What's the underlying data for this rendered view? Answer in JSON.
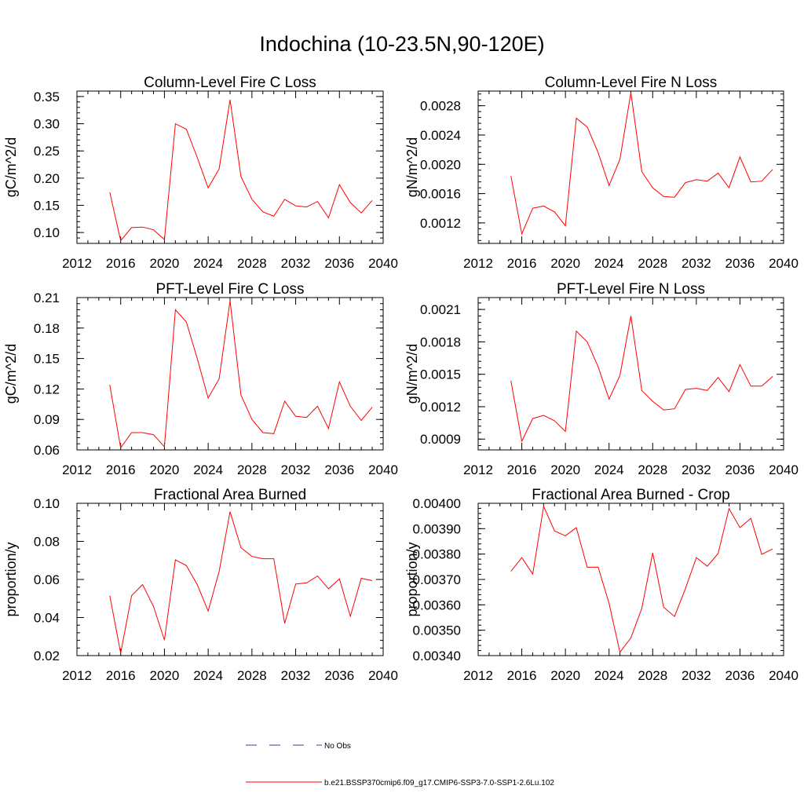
{
  "figure": {
    "title": "Indochina (10-23.5N,90-120E)"
  },
  "legend": [
    {
      "label": "No Obs",
      "color": "#3b3b9b",
      "dash": "dashed"
    },
    {
      "label": "b.e21.BSSP370cmip6.f09_g17.CMIP6-SSP3-7.0-SSP1-2.6Lu.102",
      "color": "#ff0000",
      "dash": "solid"
    }
  ],
  "chart_data": [
    {
      "type": "line",
      "title": "Column-Level Fire C Loss",
      "xlabel": "",
      "ylabel": "gC/m^2/d",
      "xlim": [
        2012,
        2040
      ],
      "ylim": [
        0.08,
        0.36
      ],
      "x_ticks": [
        "2012",
        "2016",
        "2020",
        "2024",
        "2028",
        "2032",
        "2036",
        "2040"
      ],
      "y_ticks": [
        "0.10",
        "0.15",
        "0.20",
        "0.25",
        "0.30",
        "0.35"
      ],
      "y_tick_values": [
        0.1,
        0.15,
        0.2,
        0.25,
        0.3,
        0.35
      ],
      "x": [
        2015,
        2016,
        2017,
        2018,
        2019,
        2020,
        2021,
        2022,
        2023,
        2024,
        2025,
        2026,
        2027,
        2028,
        2029,
        2030,
        2031,
        2032,
        2033,
        2034,
        2035,
        2036,
        2037,
        2038,
        2039
      ],
      "series": [
        {
          "color": "#ff0000",
          "values": [
            0.174,
            0.085,
            0.109,
            0.11,
            0.105,
            0.087,
            0.3,
            0.29,
            0.238,
            0.182,
            0.217,
            0.344,
            0.203,
            0.161,
            0.138,
            0.13,
            0.161,
            0.149,
            0.147,
            0.157,
            0.127,
            0.188,
            0.155,
            0.136,
            0.159
          ]
        }
      ]
    },
    {
      "type": "line",
      "title": "Column-Level Fire N Loss",
      "xlabel": "",
      "ylabel": "gN/m^2/d",
      "xlim": [
        2012,
        2040
      ],
      "ylim": [
        0.00092,
        0.003
      ],
      "x_ticks": [
        "2012",
        "2016",
        "2020",
        "2024",
        "2028",
        "2032",
        "2036",
        "2040"
      ],
      "y_ticks": [
        "0.0012",
        "0.0016",
        "0.0020",
        "0.0024",
        "0.0028"
      ],
      "y_tick_values": [
        0.0012,
        0.0016,
        0.002,
        0.0024,
        0.0028
      ],
      "x": [
        2015,
        2016,
        2017,
        2018,
        2019,
        2020,
        2021,
        2022,
        2023,
        2024,
        2025,
        2026,
        2027,
        2028,
        2029,
        2030,
        2031,
        2032,
        2033,
        2034,
        2035,
        2036,
        2037,
        2038,
        2039
      ],
      "series": [
        {
          "color": "#ff0000",
          "values": [
            0.00184,
            0.00105,
            0.0014,
            0.00143,
            0.00135,
            0.00116,
            0.00263,
            0.00251,
            0.00216,
            0.00171,
            0.00207,
            0.00298,
            0.0019,
            0.00168,
            0.00156,
            0.00155,
            0.00175,
            0.00179,
            0.00177,
            0.00188,
            0.00168,
            0.0021,
            0.00176,
            0.00177,
            0.00193
          ]
        }
      ]
    },
    {
      "type": "line",
      "title": "PFT-Level Fire C Loss",
      "xlabel": "",
      "ylabel": "gC/m^2/d",
      "xlim": [
        2012,
        2040
      ],
      "ylim": [
        0.06,
        0.21
      ],
      "x_ticks": [
        "2012",
        "2016",
        "2020",
        "2024",
        "2028",
        "2032",
        "2036",
        "2040"
      ],
      "y_ticks": [
        "0.06",
        "0.09",
        "0.12",
        "0.15",
        "0.18",
        "0.21"
      ],
      "y_tick_values": [
        0.06,
        0.09,
        0.12,
        0.15,
        0.18,
        0.21
      ],
      "x": [
        2015,
        2016,
        2017,
        2018,
        2019,
        2020,
        2021,
        2022,
        2023,
        2024,
        2025,
        2026,
        2027,
        2028,
        2029,
        2030,
        2031,
        2032,
        2033,
        2034,
        2035,
        2036,
        2037,
        2038,
        2039
      ],
      "series": [
        {
          "color": "#ff0000",
          "values": [
            0.124,
            0.062,
            0.077,
            0.077,
            0.075,
            0.063,
            0.198,
            0.186,
            0.15,
            0.111,
            0.13,
            0.207,
            0.114,
            0.09,
            0.077,
            0.076,
            0.108,
            0.093,
            0.092,
            0.103,
            0.081,
            0.127,
            0.103,
            0.089,
            0.102
          ]
        }
      ]
    },
    {
      "type": "line",
      "title": "PFT-Level Fire N Loss",
      "xlabel": "",
      "ylabel": "gN/m^2/d",
      "xlim": [
        2012,
        2040
      ],
      "ylim": [
        0.0008,
        0.00221
      ],
      "x_ticks": [
        "2012",
        "2016",
        "2020",
        "2024",
        "2028",
        "2032",
        "2036",
        "2040"
      ],
      "y_ticks": [
        "0.0009",
        "0.0012",
        "0.0015",
        "0.0018",
        "0.0021"
      ],
      "y_tick_values": [
        0.0009,
        0.0012,
        0.0015,
        0.0018,
        0.0021
      ],
      "x": [
        2015,
        2016,
        2017,
        2018,
        2019,
        2020,
        2021,
        2022,
        2023,
        2024,
        2025,
        2026,
        2027,
        2028,
        2029,
        2030,
        2031,
        2032,
        2033,
        2034,
        2035,
        2036,
        2037,
        2038,
        2039
      ],
      "series": [
        {
          "color": "#ff0000",
          "values": [
            0.00144,
            0.00088,
            0.00109,
            0.00112,
            0.00107,
            0.00097,
            0.0019,
            0.0018,
            0.00157,
            0.00127,
            0.00149,
            0.00204,
            0.00135,
            0.00125,
            0.00117,
            0.00118,
            0.00136,
            0.00137,
            0.00135,
            0.00147,
            0.00134,
            0.00159,
            0.00139,
            0.00139,
            0.00148
          ]
        }
      ]
    },
    {
      "type": "line",
      "title": "Fractional Area Burned",
      "xlabel": "",
      "ylabel": "proportion/y",
      "xlim": [
        2012,
        2040
      ],
      "ylim": [
        0.02,
        0.1
      ],
      "x_ticks": [
        "2012",
        "2016",
        "2020",
        "2024",
        "2028",
        "2032",
        "2036",
        "2040"
      ],
      "y_ticks": [
        "0.02",
        "0.04",
        "0.06",
        "0.08",
        "0.10"
      ],
      "y_tick_values": [
        0.02,
        0.04,
        0.06,
        0.08,
        0.1
      ],
      "x": [
        2015,
        2016,
        2017,
        2018,
        2019,
        2020,
        2021,
        2022,
        2023,
        2024,
        2025,
        2026,
        2027,
        2028,
        2029,
        2030,
        2031,
        2032,
        2033,
        2034,
        2035,
        2036,
        2037,
        2038,
        2039
      ],
      "series": [
        {
          "color": "#ff0000",
          "values": [
            0.0515,
            0.0213,
            0.0515,
            0.0573,
            0.0458,
            0.0282,
            0.0703,
            0.0673,
            0.0573,
            0.0434,
            0.0642,
            0.0956,
            0.0767,
            0.0721,
            0.0709,
            0.0709,
            0.0369,
            0.0576,
            0.0582,
            0.0618,
            0.0551,
            0.0603,
            0.0406,
            0.0606,
            0.0594
          ]
        }
      ]
    },
    {
      "type": "line",
      "title": "Fractional Area Burned - Crop",
      "xlabel": "",
      "ylabel": "proportion/y",
      "xlim": [
        2012,
        2040
      ],
      "ylim": [
        0.0034,
        0.004
      ],
      "x_ticks": [
        "2012",
        "2016",
        "2020",
        "2024",
        "2028",
        "2032",
        "2036",
        "2040"
      ],
      "y_ticks": [
        "0.00340",
        "0.00350",
        "0.00360",
        "0.00370",
        "0.00380",
        "0.00390",
        "0.00400"
      ],
      "y_tick_values": [
        0.0034,
        0.0035,
        0.0036,
        0.0037,
        0.0038,
        0.0039,
        0.004
      ],
      "x": [
        2015,
        2016,
        2017,
        2018,
        2019,
        2020,
        2021,
        2022,
        2023,
        2024,
        2025,
        2026,
        2027,
        2028,
        2029,
        2030,
        2031,
        2032,
        2033,
        2034,
        2035,
        2036,
        2037,
        2038,
        2039
      ],
      "series": [
        {
          "color": "#ff0000",
          "values": [
            0.003732,
            0.003786,
            0.003721,
            0.003988,
            0.003891,
            0.003872,
            0.003904,
            0.003748,
            0.003749,
            0.003606,
            0.003413,
            0.00347,
            0.003586,
            0.003805,
            0.003591,
            0.003554,
            0.003664,
            0.003786,
            0.003752,
            0.003802,
            0.003979,
            0.003904,
            0.003941,
            0.003799,
            0.00382
          ]
        }
      ]
    }
  ]
}
